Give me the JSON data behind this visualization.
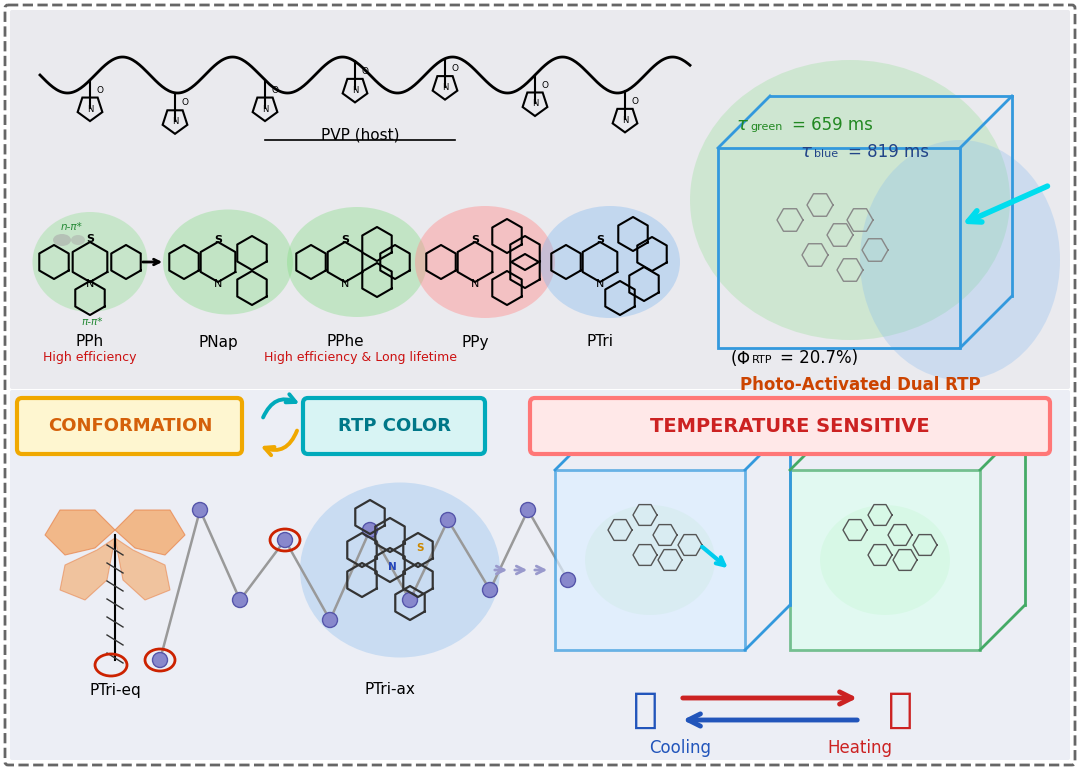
{
  "bg_color": "#ffffff",
  "top_panel_bg": "#e8e8ec",
  "bottom_panel_bg": "#eceef4",
  "pvp_label": "PVP (host)",
  "mol_labels": [
    "PPh",
    "PNap",
    "PPhe",
    "PPy",
    "PTri"
  ],
  "red_label_pph": "High efficiency",
  "red_label_mid": "High efficiency & Long lifetime",
  "npi_label": "n-π*",
  "pipi_label": "π-π*",
  "tau_green_label": "green",
  "tau_green_val": "= 659 ms",
  "tau_blue_label": "blue",
  "tau_blue_val": "= 819 ms",
  "phi_rtp_val": "= 20.7%)",
  "dual_rtp": "Photo-Activated Dual RTP",
  "conformation": "CONFORMATION",
  "rtp_color": "RTP COLOR",
  "temp_sensitive": "TEMPERATURE SENSITIVE",
  "ptri_eq": "PTri-eq",
  "ptri_ax": "PTri-ax",
  "cooling": "Cooling",
  "heating": "Heating",
  "colors": {
    "top_bg": "#eaeaee",
    "bot_bg": "#eceef5",
    "border": "#666666",
    "conformation_bg": "#fef6d0",
    "conformation_border": "#f0a800",
    "conformation_text": "#d4600a",
    "rtp_bg": "#d8f4f4",
    "rtp_border": "#00aabb",
    "rtp_text": "#007788",
    "temp_bg": "#ffe8e8",
    "temp_border": "#ff7777",
    "temp_text": "#cc2222",
    "green_glow": "#88dd88",
    "red_glow": "#ff9090",
    "blue_glow": "#88bbee",
    "orange1": "#f4a460",
    "orange2": "#e8834a",
    "purple_dot": "#8888cc",
    "red_circle": "#cc2200",
    "blue_box": "#3399dd",
    "green_box": "#44aa66",
    "dark_mol": "#333333",
    "cyan_arrow": "#00ccdd",
    "tau_green_color": "#228822",
    "tau_blue_color": "#224488",
    "cooling_color": "#2255bb",
    "heating_color": "#cc2222"
  }
}
